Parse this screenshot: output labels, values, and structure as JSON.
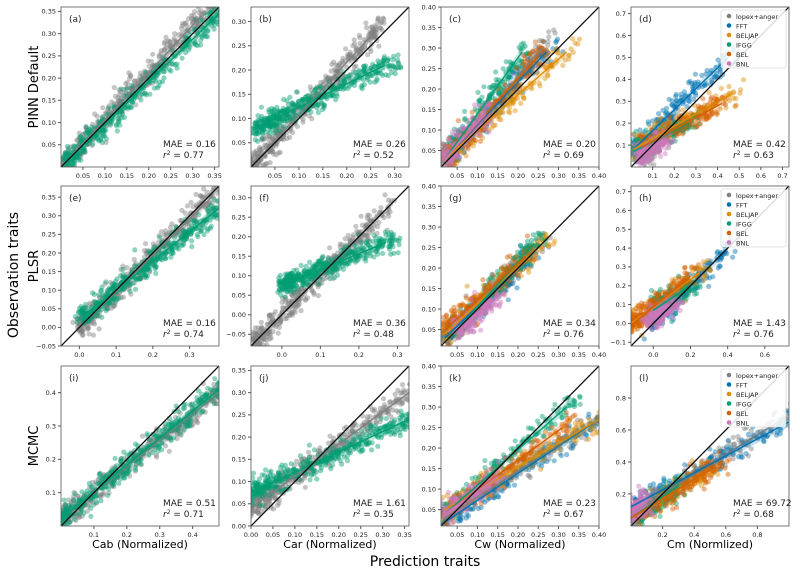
{
  "figure": {
    "ylabel": "Observation traits",
    "xlabel": "Prediction traits",
    "row_labels": [
      "PINN Default",
      "PLSR",
      "MCMC"
    ],
    "col_xlabels": [
      "Cab (Normalized)",
      "Car (Normalized)",
      "Cw (Normalized)",
      "Cm (Normlized)"
    ]
  },
  "series_colors": {
    "lopex+anger": "#808080",
    "FFT": "#0173b2",
    "BELJAP": "#de8f05",
    "IFGG": "#029e73",
    "BEL": "#d55e00",
    "BNL": "#cc78bc"
  },
  "legend": [
    "lopex+anger",
    "FFT",
    "BELJAP",
    "IFGG",
    "BEL",
    "BNL"
  ],
  "chart_data": [
    {
      "type": "scatter",
      "panel": "(a)",
      "xlim": [
        0,
        0.36
      ],
      "ylim": [
        0,
        0.36
      ],
      "xticks": [
        "0.05",
        "0.10",
        "0.15",
        "0.20",
        "0.25",
        "0.30",
        "0.35"
      ],
      "yticks": [
        "0.05",
        "0.10",
        "0.15",
        "0.20",
        "0.25",
        "0.30",
        "0.35"
      ],
      "mae": "MAE = 0.16",
      "r2": "0.77",
      "legend": false,
      "fits": [
        {
          "series": "lopex+anger",
          "from": [
            0,
            0
          ],
          "to": [
            0.32,
            0.34
          ]
        },
        {
          "series": "IFGG",
          "from": [
            0.01,
            0.01
          ],
          "to": [
            0.36,
            0.345
          ]
        }
      ]
    },
    {
      "type": "scatter",
      "panel": "(b)",
      "xlim": [
        0,
        0.33
      ],
      "ylim": [
        0,
        0.33
      ],
      "xticks": [
        "0.05",
        "0.10",
        "0.15",
        "0.20",
        "0.25",
        "0.30"
      ],
      "yticks": [
        "0.05",
        "0.10",
        "0.15",
        "0.20",
        "0.25",
        "0.30"
      ],
      "mae": "MAE = 0.26",
      "r2": "0.52",
      "legend": false,
      "fits": [
        {
          "series": "lopex+anger",
          "from": [
            0,
            0
          ],
          "to": [
            0.25,
            0.27
          ]
        },
        {
          "series": "IFGG",
          "from": [
            0.01,
            0.08
          ],
          "to": [
            0.28,
            0.21
          ]
        }
      ]
    },
    {
      "type": "scatter",
      "panel": "(c)",
      "xlim": [
        0.01,
        0.4
      ],
      "ylim": [
        0.01,
        0.4
      ],
      "xticks": [
        "0.05",
        "0.10",
        "0.15",
        "0.20",
        "0.25",
        "0.30",
        "0.35",
        "0.40"
      ],
      "yticks": [
        "0.05",
        "0.10",
        "0.15",
        "0.20",
        "0.25",
        "0.30",
        "0.35",
        "0.40"
      ],
      "mae": "MAE = 0.20",
      "r2": "0.69",
      "legend": false,
      "fits": [
        {
          "series": "lopex+anger",
          "from": [
            0.02,
            0.02
          ],
          "to": [
            0.26,
            0.3
          ]
        },
        {
          "series": "FFT",
          "from": [
            0.02,
            0.03
          ],
          "to": [
            0.27,
            0.29
          ]
        },
        {
          "series": "BELJAP",
          "from": [
            0.02,
            0.03
          ],
          "to": [
            0.32,
            0.29
          ]
        },
        {
          "series": "IFGG",
          "from": [
            0.02,
            0.03
          ],
          "to": [
            0.21,
            0.29
          ]
        },
        {
          "series": "BEL",
          "from": [
            0.02,
            0.03
          ],
          "to": [
            0.25,
            0.28
          ]
        },
        {
          "series": "BNL",
          "from": [
            0.02,
            0.03
          ],
          "to": [
            0.12,
            0.14
          ]
        }
      ]
    },
    {
      "type": "scatter",
      "panel": "(d)",
      "xlim": [
        0,
        0.73
      ],
      "ylim": [
        0,
        0.73
      ],
      "xticks": [
        "0.1",
        "0.2",
        "0.3",
        "0.4",
        "0.5",
        "0.6",
        "0.7"
      ],
      "yticks": [
        "0.1",
        "0.2",
        "0.3",
        "0.4",
        "0.5",
        "0.6",
        "0.7"
      ],
      "mae": "MAE = 0.42",
      "r2": "0.63",
      "legend": true,
      "fits": [
        {
          "series": "lopex+anger",
          "from": [
            0.05,
            0.05
          ],
          "to": [
            0.2,
            0.2
          ]
        },
        {
          "series": "FFT",
          "from": [
            0.01,
            0.08
          ],
          "to": [
            0.45,
            0.5
          ]
        },
        {
          "series": "BELJAP",
          "from": [
            0.01,
            0.08
          ],
          "to": [
            0.46,
            0.33
          ]
        },
        {
          "series": "IFGG",
          "from": [
            0.01,
            0.07
          ],
          "to": [
            0.27,
            0.2
          ]
        },
        {
          "series": "BEL",
          "from": [
            0.05,
            0.09
          ],
          "to": [
            0.42,
            0.29
          ]
        },
        {
          "series": "BNL",
          "from": [
            0.03,
            0.05
          ],
          "to": [
            0.16,
            0.13
          ]
        }
      ]
    },
    {
      "type": "scatter",
      "panel": "(e)",
      "xlim": [
        -0.05,
        0.38
      ],
      "ylim": [
        -0.05,
        0.38
      ],
      "xticks": [
        "0.0",
        "0.1",
        "0.2",
        "0.3"
      ],
      "yticks": [
        "−0.05",
        "0.00",
        "0.05",
        "0.10",
        "0.15",
        "0.20",
        "0.25",
        "0.30",
        "0.35"
      ],
      "mae": "MAE = 0.16",
      "r2": "0.74",
      "legend": false,
      "fits": [
        {
          "series": "lopex+anger",
          "from": [
            0,
            0
          ],
          "to": [
            0.36,
            0.35
          ]
        },
        {
          "series": "IFGG",
          "from": [
            0.01,
            0.03
          ],
          "to": [
            0.38,
            0.32
          ]
        }
      ]
    },
    {
      "type": "scatter",
      "panel": "(f)",
      "xlim": [
        -0.08,
        0.33
      ],
      "ylim": [
        -0.08,
        0.33
      ],
      "xticks": [
        "0.0",
        "0.1",
        "0.2",
        "0.3"
      ],
      "yticks": [
        "−0.05",
        "0.00",
        "0.05",
        "0.10",
        "0.15",
        "0.20",
        "0.25",
        "0.30"
      ],
      "mae": "MAE = 0.36",
      "r2": "0.48",
      "legend": false,
      "fits": [
        {
          "series": "lopex+anger",
          "from": [
            -0.08,
            -0.08
          ],
          "to": [
            0.25,
            0.25
          ]
        },
        {
          "series": "IFGG",
          "from": [
            0,
            0.075
          ],
          "to": [
            0.27,
            0.185
          ]
        }
      ]
    },
    {
      "type": "scatter",
      "panel": "(g)",
      "xlim": [
        0.01,
        0.4
      ],
      "ylim": [
        0.01,
        0.4
      ],
      "xticks": [
        "0.05",
        "0.10",
        "0.15",
        "0.20",
        "0.25",
        "0.30",
        "0.35",
        "0.40"
      ],
      "yticks": [
        "0.05",
        "0.10",
        "0.15",
        "0.20",
        "0.25",
        "0.30",
        "0.35",
        "0.40"
      ],
      "mae": "MAE = 0.34",
      "r2": "0.76",
      "legend": false,
      "fits": [
        {
          "series": "lopex+anger",
          "from": [
            0.02,
            0.03
          ],
          "to": [
            0.25,
            0.25
          ]
        },
        {
          "series": "FFT",
          "from": [
            0.02,
            0.03
          ],
          "to": [
            0.22,
            0.22
          ]
        },
        {
          "series": "BELJAP",
          "from": [
            0.02,
            0.04
          ],
          "to": [
            0.25,
            0.25
          ]
        },
        {
          "series": "IFGG",
          "from": [
            0.05,
            0.05
          ],
          "to": [
            0.24,
            0.26
          ]
        },
        {
          "series": "BEL",
          "from": [
            0.02,
            0.05
          ],
          "to": [
            0.22,
            0.23
          ]
        },
        {
          "series": "BNL",
          "from": [
            0.05,
            0.05
          ],
          "to": [
            0.15,
            0.13
          ]
        }
      ]
    },
    {
      "type": "scatter",
      "panel": "(h)",
      "xlim": [
        -0.12,
        0.73
      ],
      "ylim": [
        -0.12,
        0.73
      ],
      "xticks": [
        "0.0",
        "0.2",
        "0.4",
        "0.6"
      ],
      "yticks": [
        "−0.1",
        "0.0",
        "0.1",
        "0.2",
        "0.3",
        "0.4",
        "0.5",
        "0.6",
        "0.7"
      ],
      "mae": "MAE = 1.43",
      "r2": "0.76",
      "legend": true,
      "fits": [
        {
          "series": "FFT",
          "from": [
            0,
            0
          ],
          "to": [
            0.4,
            0.4
          ]
        },
        {
          "series": "BELJAP",
          "from": [
            -0.12,
            0
          ],
          "to": [
            0.25,
            0.27
          ]
        },
        {
          "series": "IFGG",
          "from": [
            0,
            0.07
          ],
          "to": [
            0.2,
            0.2
          ]
        },
        {
          "series": "BEL",
          "from": [
            -0.12,
            -0.01
          ],
          "to": [
            0.2,
            0.25
          ]
        },
        {
          "series": "BNL",
          "from": [
            -0.02,
            0.03
          ],
          "to": [
            0.12,
            0.11
          ]
        }
      ]
    },
    {
      "type": "scatter",
      "panel": "(i)",
      "xlim": [
        0,
        0.48
      ],
      "ylim": [
        0,
        0.48
      ],
      "xticks": [
        "0.1",
        "0.2",
        "0.3",
        "0.4"
      ],
      "yticks": [
        "0.1",
        "0.2",
        "0.3",
        "0.4"
      ],
      "mae": "MAE = 0.51",
      "r2": "0.71",
      "legend": false,
      "fits": [
        {
          "series": "lopex+anger",
          "from": [
            0,
            0.02
          ],
          "to": [
            0.48,
            0.4
          ]
        },
        {
          "series": "IFGG",
          "from": [
            0,
            0.02
          ],
          "to": [
            0.48,
            0.41
          ]
        }
      ]
    },
    {
      "type": "scatter",
      "panel": "(j)",
      "xlim": [
        0,
        0.36
      ],
      "ylim": [
        0,
        0.36
      ],
      "xticks": [
        "0.00",
        "0.05",
        "0.10",
        "0.15",
        "0.20",
        "0.25",
        "0.30",
        "0.35"
      ],
      "yticks": [
        "0.00",
        "0.05",
        "0.10",
        "0.15",
        "0.20",
        "0.25",
        "0.30",
        "0.35"
      ],
      "mae": "MAE = 1.61",
      "r2": "0.35",
      "legend": false,
      "fits": [
        {
          "series": "lopex+anger",
          "from": [
            0,
            0.04
          ],
          "to": [
            0.36,
            0.3
          ]
        },
        {
          "series": "IFGG",
          "from": [
            0,
            0.075
          ],
          "to": [
            0.36,
            0.24
          ]
        }
      ]
    },
    {
      "type": "scatter",
      "panel": "(k)",
      "xlim": [
        0.01,
        0.4
      ],
      "ylim": [
        0.01,
        0.4
      ],
      "xticks": [
        "0.05",
        "0.10",
        "0.15",
        "0.20",
        "0.25",
        "0.30",
        "0.35",
        "0.40"
      ],
      "yticks": [
        "0.05",
        "0.10",
        "0.15",
        "0.20",
        "0.25",
        "0.30",
        "0.35",
        "0.40"
      ],
      "mae": "MAE = 0.23",
      "r2": "0.67",
      "legend": false,
      "fits": [
        {
          "series": "lopex+anger",
          "from": [
            0.02,
            0.03
          ],
          "to": [
            0.4,
            0.27
          ]
        },
        {
          "series": "FFT",
          "from": [
            0.02,
            0.02
          ],
          "to": [
            0.4,
            0.27
          ]
        },
        {
          "series": "BELJAP",
          "from": [
            0.02,
            0.05
          ],
          "to": [
            0.4,
            0.27
          ]
        },
        {
          "series": "IFGG",
          "from": [
            0.02,
            0.04
          ],
          "to": [
            0.32,
            0.3
          ]
        },
        {
          "series": "BEL",
          "from": [
            0.02,
            0.04
          ],
          "to": [
            0.31,
            0.25
          ]
        },
        {
          "series": "BNL",
          "from": [
            0.02,
            0.04
          ],
          "to": [
            0.15,
            0.13
          ]
        }
      ]
    },
    {
      "type": "scatter",
      "panel": "(l)",
      "xlim": [
        0,
        1.0
      ],
      "ylim": [
        0,
        1.0
      ],
      "xticks": [
        "0.2",
        "0.4",
        "0.6",
        "0.8"
      ],
      "yticks": [
        "0.2",
        "0.4",
        "0.6",
        "0.8"
      ],
      "mae": "MAE = 69.72",
      "r2": "0.68",
      "legend": true,
      "fits": [
        {
          "series": "lopex+anger",
          "from": [
            0,
            0.08
          ],
          "to": [
            0.98,
            0.68
          ]
        },
        {
          "series": "FFT",
          "from": [
            0,
            0.12
          ],
          "to": [
            1.0,
            0.65
          ]
        },
        {
          "series": "BELJAP",
          "from": [
            0,
            0.05
          ],
          "to": [
            0.5,
            0.35
          ]
        },
        {
          "series": "IFGG",
          "from": [
            0,
            0.05
          ],
          "to": [
            0.3,
            0.25
          ]
        },
        {
          "series": "BEL",
          "from": [
            0,
            0.05
          ],
          "to": [
            0.53,
            0.37
          ]
        },
        {
          "series": "BNL",
          "from": [
            0,
            0.08
          ],
          "to": [
            0.1,
            0.15
          ]
        }
      ]
    }
  ]
}
